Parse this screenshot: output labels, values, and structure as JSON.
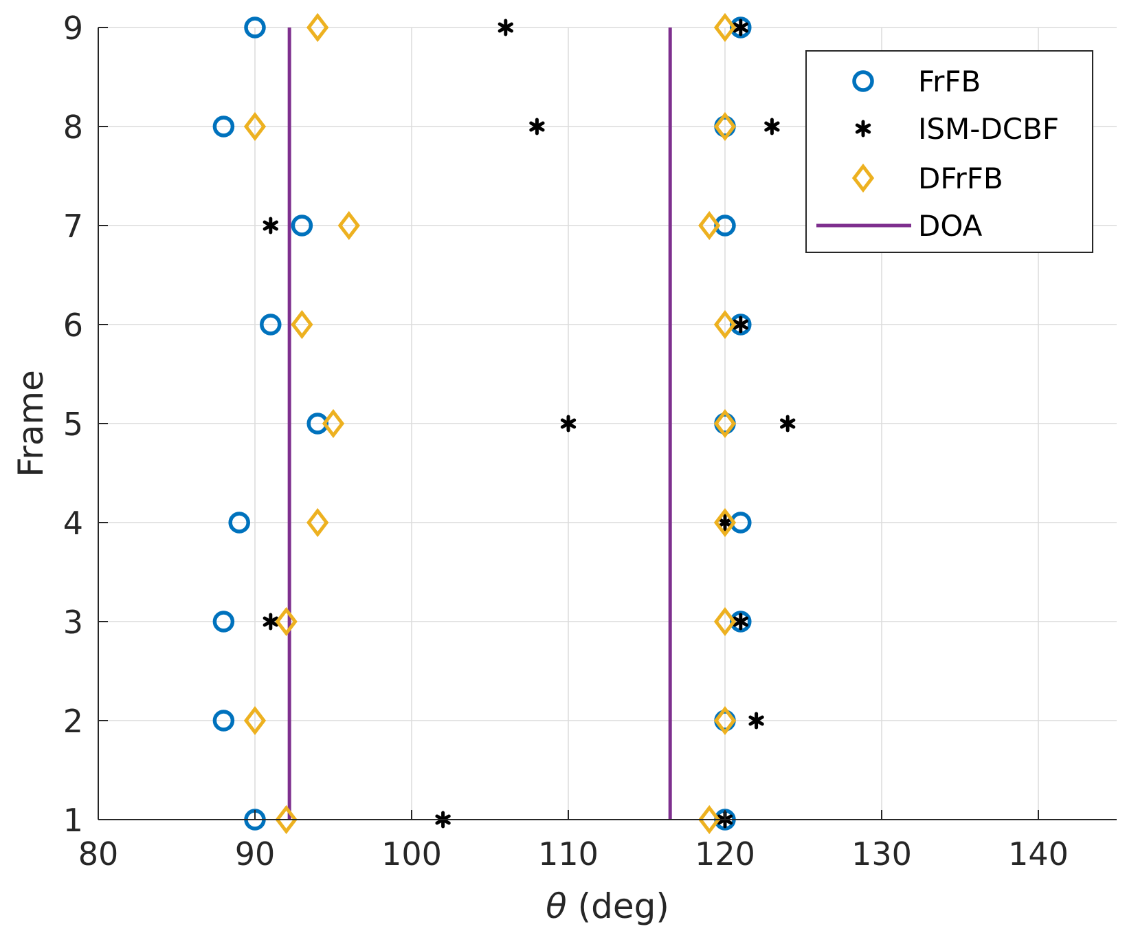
{
  "chart_data": {
    "type": "scatter",
    "title": "",
    "xlabel_symbol": "θ",
    "xlabel_unit": "(deg)",
    "ylabel": "Frame",
    "xlim": [
      80,
      145
    ],
    "ylim": [
      1,
      9
    ],
    "xticks": [
      80,
      90,
      100,
      110,
      120,
      130,
      140
    ],
    "yticks": [
      1,
      2,
      3,
      4,
      5,
      6,
      7,
      8,
      9
    ],
    "grid": true,
    "legend_position": "top-right",
    "series": [
      {
        "name": "FrFB",
        "marker": "circle",
        "color": "#0072BD",
        "points": [
          [
            90,
            1
          ],
          [
            120,
            1
          ],
          [
            88,
            2
          ],
          [
            120,
            2
          ],
          [
            88,
            3
          ],
          [
            121,
            3
          ],
          [
            89,
            4
          ],
          [
            121,
            4
          ],
          [
            94,
            5
          ],
          [
            120,
            5
          ],
          [
            91,
            6
          ],
          [
            121,
            6
          ],
          [
            93,
            7
          ],
          [
            120,
            7
          ],
          [
            88,
            8
          ],
          [
            120,
            8
          ],
          [
            90,
            9
          ],
          [
            121,
            9
          ]
        ]
      },
      {
        "name": "ISM-DCBF",
        "marker": "asterisk",
        "color": "#000000",
        "points": [
          [
            102,
            1
          ],
          [
            120,
            1
          ],
          [
            122,
            2
          ],
          [
            91,
            3
          ],
          [
            121,
            3
          ],
          [
            120,
            4
          ],
          [
            110,
            5
          ],
          [
            124,
            5
          ],
          [
            121,
            6
          ],
          [
            91,
            7
          ],
          [
            108,
            8
          ],
          [
            123,
            8
          ],
          [
            106,
            9
          ],
          [
            121,
            9
          ]
        ]
      },
      {
        "name": "DFrFB",
        "marker": "diamond",
        "color": "#EDB120",
        "points": [
          [
            92,
            1
          ],
          [
            119,
            1
          ],
          [
            90,
            2
          ],
          [
            120,
            2
          ],
          [
            92,
            3
          ],
          [
            120,
            3
          ],
          [
            94,
            4
          ],
          [
            120,
            4
          ],
          [
            95,
            5
          ],
          [
            120,
            5
          ],
          [
            93,
            6
          ],
          [
            120,
            6
          ],
          [
            96,
            7
          ],
          [
            119,
            7
          ],
          [
            90,
            8
          ],
          [
            120,
            8
          ],
          [
            94,
            9
          ],
          [
            120,
            9
          ]
        ]
      },
      {
        "name": "DOA",
        "marker": "vline",
        "color": "#7E2F8E",
        "x_values": [
          92.2,
          116.5
        ]
      }
    ]
  }
}
